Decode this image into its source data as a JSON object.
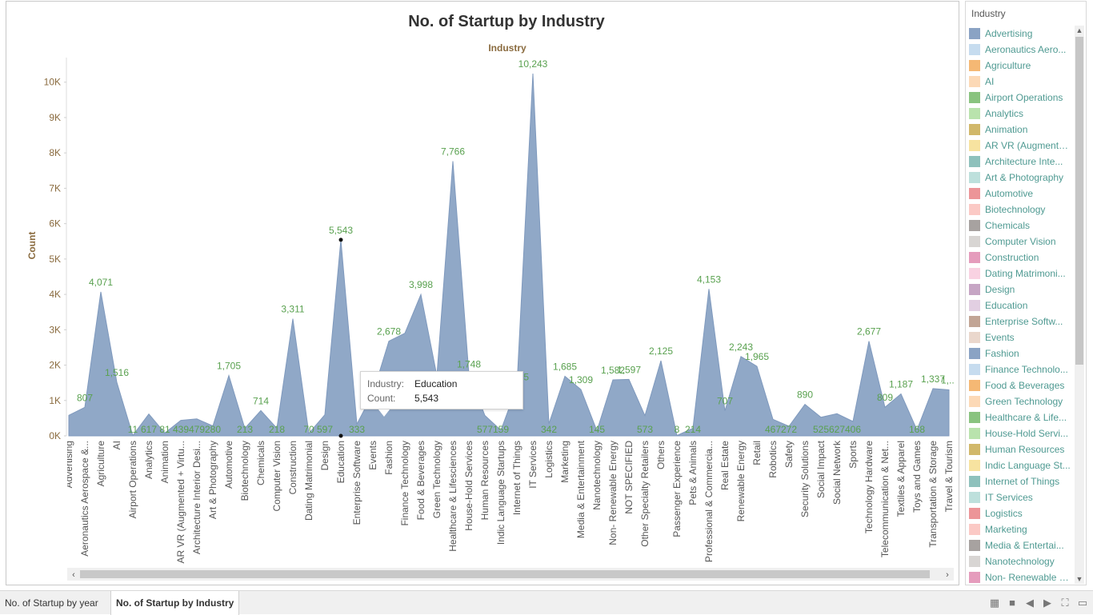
{
  "chart_data": {
    "type": "area",
    "title": "No. of Startup by Industry",
    "xlabel": "Industry",
    "ylabel": "Count",
    "ylim": [
      0,
      10500
    ],
    "yticks": [
      "0K",
      "1K",
      "2K",
      "3K",
      "4K",
      "5K",
      "6K",
      "7K",
      "8K",
      "9K",
      "10K"
    ],
    "series": [
      {
        "name": "Count",
        "color": "#8aa3c4"
      }
    ],
    "categories": [
      "Advertising",
      "Aeronautics Aerospace &...",
      "Agriculture",
      "AI",
      "Airport Operations",
      "Analytics",
      "Animation",
      "AR VR (Augmented + Virtu...",
      "Architecture Interior Desi...",
      "Art & Photography",
      "Automotive",
      "Biotechnology",
      "Chemicals",
      "Computer Vision",
      "Construction",
      "Dating Matrimonial",
      "Design",
      "Education",
      "Enterprise Software",
      "Events",
      "Fashion",
      "Finance Technology",
      "Food & Beverages",
      "Green Technology",
      "Healthcare & Lifesciences",
      "House-Hold Services",
      "Human Resources",
      "Indic Language Startups",
      "Internet of Things",
      "IT Services",
      "Logistics",
      "Marketing",
      "Media & Entertainment",
      "Nanotechnology",
      "Non- Renewable Energy",
      "NOT SPECIFIED",
      "Other Specialty Retailers",
      "Others",
      "Passenger Experience",
      "Pets & Animals",
      "Professional & Commercia...",
      "Real Estate",
      "Renewable Energy",
      "Retail",
      "Robotics",
      "Safety",
      "Security Solutions",
      "Social Impact",
      "Social Network",
      "Sports",
      "Technology Hardware",
      "Telecommunication & Net...",
      "Textiles & Apparel",
      "Toys and Games",
      "Transportation & Storage",
      "Travel & Tourism"
    ],
    "values": [
      580,
      807,
      4071,
      1516,
      11,
      617,
      81,
      439,
      479,
      280,
      1705,
      213,
      714,
      218,
      3311,
      70,
      597,
      5543,
      333,
      1200,
      2678,
      2900,
      3998,
      1700,
      7766,
      1748,
      577,
      159,
      1385,
      10243,
      342,
      1685,
      1309,
      145,
      1582,
      1597,
      573,
      2125,
      8,
      214,
      4153,
      707,
      2243,
      1965,
      467,
      272,
      890,
      525,
      627,
      406,
      2677,
      809,
      1187,
      168,
      1337,
      1300
    ],
    "labels": [
      null,
      "807",
      "4,071",
      "1,516",
      "11",
      "617",
      "81",
      "439",
      "479",
      "280",
      "1,705",
      "213",
      "714",
      "218",
      "3,311",
      "70",
      "597",
      "5,543",
      "333",
      null,
      "2,678",
      null,
      "3,998",
      null,
      "7,766",
      "1,748",
      "577",
      "159",
      "1,385",
      "10,243",
      "342",
      "1,685",
      "1,309",
      "145",
      "1,582",
      "1,597",
      "573",
      "2,125",
      "8",
      "214",
      "4,153",
      "707",
      "2,243",
      "1,965",
      "467",
      "272",
      "890",
      "525",
      "627",
      "406",
      "2,677",
      "809",
      "1,187",
      "168",
      "1,337",
      "1,..."
    ],
    "label_color": "#59a14f",
    "highlight_index": 17,
    "grid": false,
    "legend": "right"
  },
  "tooltip": {
    "industry_key": "Industry:",
    "industry_value": "Education",
    "count_key": "Count:",
    "count_value": "5,543"
  },
  "legend": {
    "title": "Industry",
    "items": [
      {
        "label": "Advertising",
        "color": "#8aa3c4"
      },
      {
        "label": "Aeronautics Aero...",
        "color": "#c6dcef"
      },
      {
        "label": "Agriculture",
        "color": "#f5b874"
      },
      {
        "label": "AI",
        "color": "#fcd9b6"
      },
      {
        "label": "Airport Operations",
        "color": "#89c37f"
      },
      {
        "label": "Analytics",
        "color": "#b9e3ad"
      },
      {
        "label": "Animation",
        "color": "#d1b86a"
      },
      {
        "label": "AR VR (Augmente...",
        "color": "#f7e3a0"
      },
      {
        "label": "Architecture Inte...",
        "color": "#8ec1bc"
      },
      {
        "label": "Art & Photography",
        "color": "#bde0dc"
      },
      {
        "label": "Automotive",
        "color": "#ec9598"
      },
      {
        "label": "Biotechnology",
        "color": "#fbc9c5"
      },
      {
        "label": "Chemicals",
        "color": "#a7a2a0"
      },
      {
        "label": "Computer Vision",
        "color": "#d8d5d3"
      },
      {
        "label": "Construction",
        "color": "#e59cbc"
      },
      {
        "label": "Dating Matrimoni...",
        "color": "#f9d2e2"
      },
      {
        "label": "Design",
        "color": "#c6a5c4"
      },
      {
        "label": "Education",
        "color": "#e2cfe2"
      },
      {
        "label": "Enterprise Softw...",
        "color": "#c2a595"
      },
      {
        "label": "Events",
        "color": "#ead7cc"
      },
      {
        "label": "Fashion",
        "color": "#8aa3c4"
      },
      {
        "label": "Finance Technolo...",
        "color": "#c6dcef"
      },
      {
        "label": "Food & Beverages",
        "color": "#f5b874"
      },
      {
        "label": "Green Technology",
        "color": "#fcd9b6"
      },
      {
        "label": "Healthcare & Life...",
        "color": "#89c37f"
      },
      {
        "label": "House-Hold Servi...",
        "color": "#b9e3ad"
      },
      {
        "label": "Human Resources",
        "color": "#d1b86a"
      },
      {
        "label": "Indic Language St...",
        "color": "#f7e3a0"
      },
      {
        "label": "Internet of Things",
        "color": "#8ec1bc"
      },
      {
        "label": "IT Services",
        "color": "#bde0dc"
      },
      {
        "label": "Logistics",
        "color": "#ec9598"
      },
      {
        "label": "Marketing",
        "color": "#fbc9c5"
      },
      {
        "label": "Media & Entertai...",
        "color": "#a7a2a0"
      },
      {
        "label": "Nanotechnology",
        "color": "#d8d5d3"
      },
      {
        "label": "Non- Renewable E...",
        "color": "#e59cbc"
      }
    ]
  },
  "tabs": [
    {
      "label": "No. of Startup by year",
      "active": false
    },
    {
      "label": "No. of Startup by Industry",
      "active": true
    }
  ],
  "nav_icons": [
    "grid-view-icon",
    "single-view-icon",
    "prev-icon",
    "next-icon",
    "fullscreen-icon",
    "present-icon"
  ]
}
